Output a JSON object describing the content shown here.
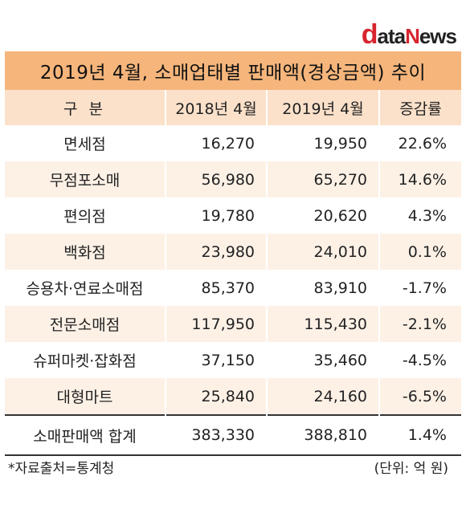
{
  "logo": {
    "d": "d",
    "ata": "ata",
    "n": "N",
    "ews": "ews"
  },
  "title": "2019년 4월, 소매업태별 판매액(경상금액) 추이",
  "headers": [
    "구  분",
    "2018년 4월",
    "2019년 4월",
    "증감률"
  ],
  "rows": [
    {
      "name": "면세점",
      "y2018": "16,270",
      "y2019": "19,950",
      "rate": "22.6%"
    },
    {
      "name": "무점포소매",
      "y2018": "56,980",
      "y2019": "65,270",
      "rate": "14.6%"
    },
    {
      "name": "편의점",
      "y2018": "19,780",
      "y2019": "20,620",
      "rate": "4.3%"
    },
    {
      "name": "백화점",
      "y2018": "23,980",
      "y2019": "24,010",
      "rate": "0.1%"
    },
    {
      "name": "승용차·연료소매점",
      "y2018": "85,370",
      "y2019": "83,910",
      "rate": "-1.7%"
    },
    {
      "name": "전문소매점",
      "y2018": "117,950",
      "y2019": "115,430",
      "rate": "-2.1%"
    },
    {
      "name": "슈퍼마켓·잡화점",
      "y2018": "37,150",
      "y2019": "35,460",
      "rate": "-4.5%"
    },
    {
      "name": "대형마트",
      "y2018": "25,840",
      "y2019": "24,160",
      "rate": "-6.5%"
    }
  ],
  "total": {
    "name": "소매판매액 합계",
    "y2018": "383,330",
    "y2019": "388,810",
    "rate": "1.4%"
  },
  "footnote": "*자료출처=통계청",
  "unit": "(단위: 억 원)",
  "colors": {
    "title_bg": "#f5b57b",
    "header_bg": "#fbe1ca",
    "alt_row_bg": "#fdf1e6",
    "logo_red": "#d7252e"
  }
}
